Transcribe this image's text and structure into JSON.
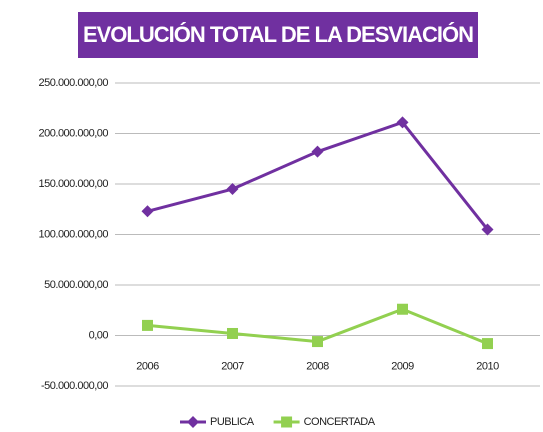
{
  "chart_data": {
    "type": "line",
    "title": "EVOLUCIÓN TOTAL DE LA DESVIACIÓN",
    "categories": [
      "2006",
      "2007",
      "2008",
      "2009",
      "2010"
    ],
    "series": [
      {
        "name": "PUBLICA",
        "color": "#7030a0",
        "marker": "diamond",
        "values": [
          123000000,
          145000000,
          182000000,
          211000000,
          105000000
        ]
      },
      {
        "name": "CONCERTADA",
        "color": "#92d050",
        "marker": "square",
        "values": [
          10000000,
          2000000,
          -6000000,
          26000000,
          -8000000
        ]
      }
    ],
    "ylim": [
      -50000000,
      250000000
    ],
    "yticks": [
      {
        "value": -50000000,
        "label": "-50.000.000,00"
      },
      {
        "value": 0,
        "label": "0,00"
      },
      {
        "value": 50000000,
        "label": "50.000.000,00"
      },
      {
        "value": 100000000,
        "label": "100.000.000,00"
      },
      {
        "value": 150000000,
        "label": "150.000.000,00"
      },
      {
        "value": 200000000,
        "label": "200.000.000,00"
      },
      {
        "value": 250000000,
        "label": "250.000.000,00"
      }
    ],
    "grid": true,
    "legend": "bottom"
  }
}
